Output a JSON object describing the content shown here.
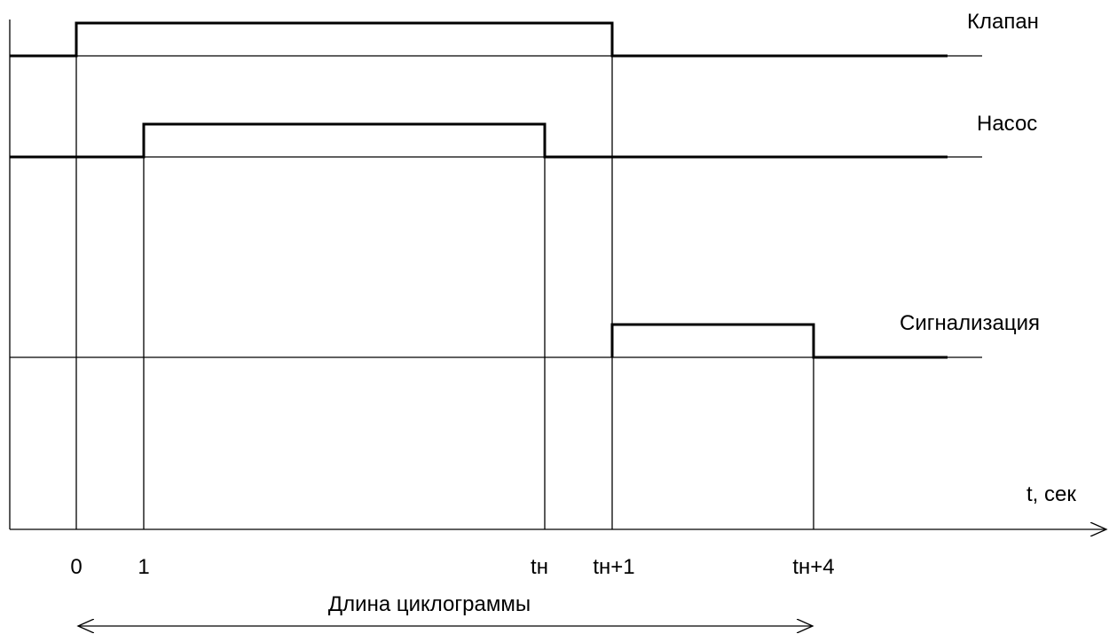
{
  "diagram": {
    "signals": [
      {
        "id": "valve",
        "label": "Клапан"
      },
      {
        "id": "pump",
        "label": "Насос"
      },
      {
        "id": "alarm",
        "label": "Сигнализация"
      }
    ],
    "axis_label": "t, сек",
    "ticks": [
      "0",
      "1",
      "tн",
      "tн+1",
      "tн+4"
    ],
    "span_label": "Длина циклограммы"
  }
}
